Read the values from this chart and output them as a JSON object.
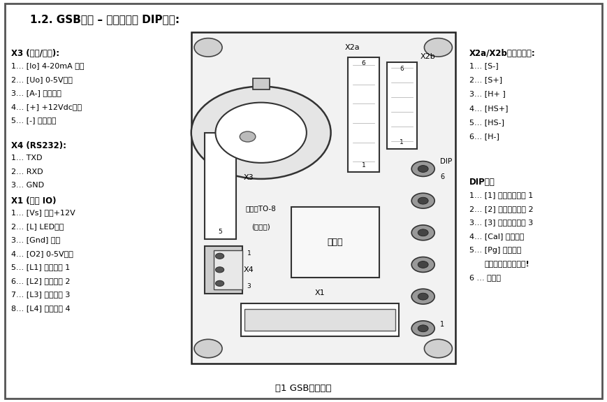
{
  "title": "1.2. GSB布局 – 端子分配和 DIP开关:",
  "caption": "图1 GSB端子分配",
  "bg_color": "#ffffff",
  "border_color": "#555555",
  "x3_title": "X3 (电源/模拟):",
  "x3_items": [
    "1… [Io] 4-20mA 输出",
    "2… [Uo] 0-5V输出",
    "3… [A-] 模拟接地",
    "4… [+] +12Vdc电源",
    "5… [-] 地面电源"
  ],
  "x4_title": "X4 (RS232):",
  "x4_items": [
    "1… TXD",
    "2… RXD",
    "3… GND"
  ],
  "x1_title": "X1 (普通 IO)",
  "x1_items": [
    "1… [Vs] 可选+12V",
    "2… [L] LED输出",
    "3… [Gnd] 接地",
    "4… [O2] 0-5V输出",
    "5… [L1] 阀值开关 1",
    "6… [L2] 阀值开关 2",
    "7… [L3] 阀值开关 3",
    "8… [L4] 阀值开关 4"
  ],
  "x2ab_title": "X2a/X2b外接传感器:",
  "x2ab_items": [
    "1… [S-]",
    "2… [S+]",
    "3… [H+ ]",
    "4… [HS+]",
    "5… [HS-]",
    "6… [H-]"
  ],
  "dip_title": "DIP开关",
  "dip_items": [
    "1… [1] 传感器选择位 1",
    "2… [2] 传感器选择位 2",
    "3… [3] 传感器选择位 3",
    "4… [Cal] 校准开关",
    "5… [Pg] 编程开关"
  ],
  "dip_bold_note": "在正常工作期间关闭!",
  "dip_item6": "6 … 不使用",
  "to8_label1": "可选的TO-8",
  "to8_label2": "(在板上)",
  "ctrl_label": "控制器",
  "x2a_label": "X2a",
  "x2b_label": "X2b",
  "x3_label": "X3",
  "x4_label": "X4",
  "x1_label": "X1",
  "dip_switch_label": "DIP"
}
